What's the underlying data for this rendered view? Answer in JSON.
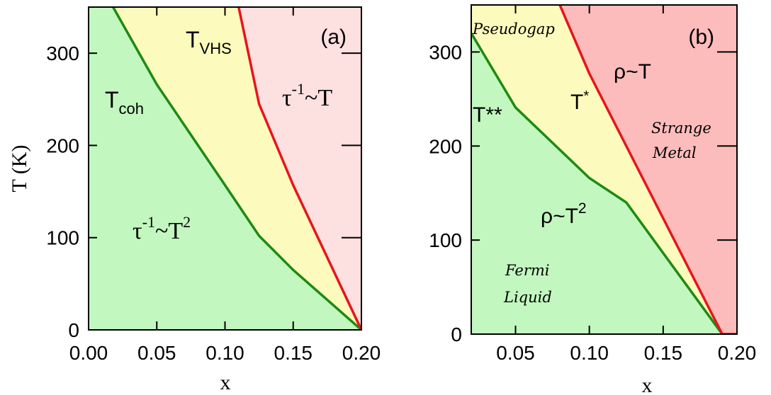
{
  "chart_data": [
    {
      "type": "area",
      "panel_label": "(a)",
      "xlabel": "x",
      "ylabel": "T (K)",
      "xlim": [
        0.0,
        0.2
      ],
      "ylim": [
        0,
        350
      ],
      "x_ticks": [
        "0.00",
        "0.05",
        "0.10",
        "0.15",
        "0.20"
      ],
      "x_tick_values": [
        0.0,
        0.05,
        0.1,
        0.15,
        0.2
      ],
      "y_ticks": [
        "0",
        "100",
        "200",
        "300"
      ],
      "y_tick_values": [
        0,
        100,
        200,
        300
      ],
      "region_colors": {
        "low": "#c3f7c0",
        "mid": "#fcfbbd",
        "high": "#fde0e0"
      },
      "series": [
        {
          "name": "Tcoh",
          "color": "#1f8a12",
          "points": [
            [
              0.018,
              350
            ],
            [
              0.05,
              266
            ],
            [
              0.1,
              157
            ],
            [
              0.125,
              102
            ],
            [
              0.15,
              65
            ],
            [
              0.2,
              0
            ]
          ]
        },
        {
          "name": "TVHS",
          "color": "#e8141c",
          "points": [
            [
              0.11,
              350
            ],
            [
              0.125,
              245
            ],
            [
              0.15,
              157
            ],
            [
              0.2,
              0
            ]
          ]
        }
      ],
      "annotations": {
        "tcoh_main": "T",
        "tcoh_sub": "coh",
        "tvhs_main": "T",
        "tvhs_sub": "VHS",
        "high_base": "τ",
        "high_sup": "-1",
        "high_tail": "~T",
        "low_base": "τ",
        "low_sup": "-1",
        "low_mid": "~T",
        "low_sup2": "2"
      }
    },
    {
      "type": "area",
      "panel_label": "(b)",
      "xlabel": "x",
      "ylabel": "",
      "xlim": [
        0.02,
        0.2
      ],
      "ylim": [
        0,
        350
      ],
      "x_ticks": [
        "0.05",
        "0.10",
        "0.15",
        "0.20"
      ],
      "x_tick_values": [
        0.05,
        0.1,
        0.15,
        0.2
      ],
      "y_ticks": [
        "0",
        "100",
        "200",
        "300"
      ],
      "y_tick_values": [
        0,
        100,
        200,
        300
      ],
      "region_colors": {
        "low": "#c3f7c0",
        "mid": "#fcfbbd",
        "high": "#fdbcbc"
      },
      "series": [
        {
          "name": "T**",
          "color": "#1f8a12",
          "points": [
            [
              0.02,
              320
            ],
            [
              0.05,
              241
            ],
            [
              0.1,
              166
            ],
            [
              0.125,
              140
            ],
            [
              0.19,
              0
            ]
          ]
        },
        {
          "name": "T*",
          "color": "#e8141c",
          "points": [
            [
              0.08,
              350
            ],
            [
              0.1,
              277
            ],
            [
              0.19,
              0
            ],
            [
              0.2,
              0
            ]
          ]
        }
      ],
      "annotations": {
        "pseudogap": "Pseudogap",
        "tss": "T**",
        "ts_main": "T",
        "ts_sup": "*",
        "rho_t": "ρ~T",
        "rho_t2_base": "ρ~T",
        "rho_t2_sup": "2",
        "strange": "Strange",
        "metal": "Metal",
        "fermi": "Fermi",
        "liquid": "Liquid"
      }
    }
  ]
}
